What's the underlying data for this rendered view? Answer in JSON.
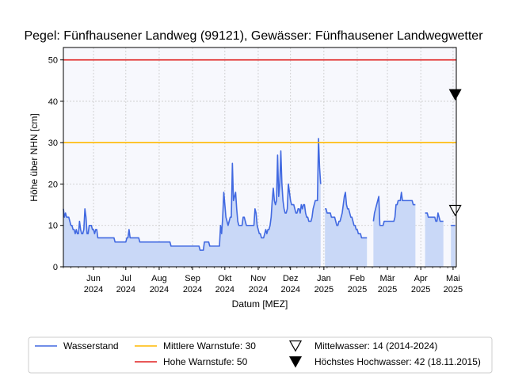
{
  "chart_data": {
    "type": "area",
    "title": "Pegel:  Fünfhausener Landweg (99121), Gewässer:  Fünfhausener Landwegwetter",
    "xlabel": "Datum [MEZ]",
    "ylabel": "Höhe über NHN [cm]",
    "ylim": [
      0,
      53
    ],
    "xlim": [
      "2024-05-04",
      "2025-05-04"
    ],
    "yticks": [
      0,
      10,
      20,
      30,
      40,
      50
    ],
    "xticks": [
      {
        "date": "2024-06-01",
        "label1": "Jun",
        "label2": "2024"
      },
      {
        "date": "2024-07-01",
        "label1": "Jul",
        "label2": "2024"
      },
      {
        "date": "2024-08-01",
        "label1": "Aug",
        "label2": "2024"
      },
      {
        "date": "2024-09-01",
        "label1": "Sep",
        "label2": "2024"
      },
      {
        "date": "2024-10-01",
        "label1": "Okt",
        "label2": "2024"
      },
      {
        "date": "2024-11-01",
        "label1": "Nov",
        "label2": "2024"
      },
      {
        "date": "2024-12-01",
        "label1": "Dez",
        "label2": "2024"
      },
      {
        "date": "2025-01-01",
        "label1": "Jan",
        "label2": "2025"
      },
      {
        "date": "2025-02-01",
        "label1": "Feb",
        "label2": "2025"
      },
      {
        "date": "2025-03-01",
        "label1": "Mär",
        "label2": "2025"
      },
      {
        "date": "2025-04-01",
        "label1": "Apr",
        "label2": "2025"
      },
      {
        "date": "2025-05-01",
        "label1": "Mai",
        "label2": "2025"
      }
    ],
    "grid": true,
    "legend_position": "bottom",
    "series": [
      {
        "name": "Wasserstand",
        "color": "#4169e1",
        "fill": "#c9d8f7",
        "segments": [
          [
            [
              "2024-05-04",
              14
            ],
            [
              "2024-05-05",
              12
            ],
            [
              "2024-05-06",
              13
            ],
            [
              "2024-05-07",
              12
            ],
            [
              "2024-05-09",
              12
            ],
            [
              "2024-05-10",
              11
            ],
            [
              "2024-05-11",
              10
            ],
            [
              "2024-05-12",
              10
            ],
            [
              "2024-05-13",
              9
            ],
            [
              "2024-05-14",
              9
            ],
            [
              "2024-05-15",
              8
            ],
            [
              "2024-05-16",
              9
            ],
            [
              "2024-05-17",
              8
            ],
            [
              "2024-05-18",
              8
            ],
            [
              "2024-05-19",
              11
            ],
            [
              "2024-05-20",
              9
            ],
            [
              "2024-05-21",
              8
            ],
            [
              "2024-05-22",
              8
            ],
            [
              "2024-05-23",
              9
            ],
            [
              "2024-05-24",
              14
            ],
            [
              "2024-05-25",
              12
            ],
            [
              "2024-05-26",
              8
            ],
            [
              "2024-05-27",
              8
            ],
            [
              "2024-05-28",
              10
            ],
            [
              "2024-05-29",
              10
            ],
            [
              "2024-05-30",
              10
            ],
            [
              "2024-05-31",
              9
            ],
            [
              "2024-06-01",
              9
            ],
            [
              "2024-06-02",
              8
            ],
            [
              "2024-06-03",
              9
            ],
            [
              "2024-06-04",
              9
            ],
            [
              "2024-06-05",
              7
            ],
            [
              "2024-06-20",
              7
            ],
            [
              "2024-06-21",
              6
            ],
            [
              "2024-07-01",
              6
            ],
            [
              "2024-07-02",
              7
            ],
            [
              "2024-07-03",
              7
            ],
            [
              "2024-07-04",
              9
            ],
            [
              "2024-07-05",
              7
            ],
            [
              "2024-07-13",
              7
            ],
            [
              "2024-07-14",
              6
            ],
            [
              "2024-08-11",
              6
            ],
            [
              "2024-08-12",
              5
            ],
            [
              "2024-09-07",
              5
            ],
            [
              "2024-09-08",
              4
            ],
            [
              "2024-09-11",
              4
            ],
            [
              "2024-09-12",
              6
            ],
            [
              "2024-09-16",
              6
            ],
            [
              "2024-09-17",
              5
            ],
            [
              "2024-09-26",
              5
            ],
            [
              "2024-09-27",
              10
            ],
            [
              "2024-09-28",
              8
            ],
            [
              "2024-09-29",
              12
            ],
            [
              "2024-09-30",
              18
            ],
            [
              "2024-10-01",
              15
            ],
            [
              "2024-10-02",
              12
            ],
            [
              "2024-10-03",
              11
            ],
            [
              "2024-10-04",
              10
            ],
            [
              "2024-10-05",
              11
            ],
            [
              "2024-10-06",
              12
            ],
            [
              "2024-10-07",
              12
            ],
            [
              "2024-10-08",
              25
            ],
            [
              "2024-10-09",
              16
            ],
            [
              "2024-10-10",
              17
            ],
            [
              "2024-10-11",
              18
            ],
            [
              "2024-10-12",
              14
            ],
            [
              "2024-10-13",
              11
            ],
            [
              "2024-10-14",
              10
            ],
            [
              "2024-10-17",
              10
            ],
            [
              "2024-10-18",
              12
            ],
            [
              "2024-10-19",
              12
            ],
            [
              "2024-10-20",
              11
            ],
            [
              "2024-10-21",
              10
            ],
            [
              "2024-10-28",
              10
            ],
            [
              "2024-10-29",
              14
            ],
            [
              "2024-10-30",
              13
            ],
            [
              "2024-10-31",
              10
            ],
            [
              "2024-11-01",
              9
            ],
            [
              "2024-11-02",
              8
            ],
            [
              "2024-11-03",
              8
            ],
            [
              "2024-11-04",
              7
            ],
            [
              "2024-11-06",
              7
            ],
            [
              "2024-11-07",
              8
            ],
            [
              "2024-11-08",
              9
            ],
            [
              "2024-11-09",
              8
            ],
            [
              "2024-11-10",
              9
            ],
            [
              "2024-11-11",
              9
            ],
            [
              "2024-11-12",
              10
            ],
            [
              "2024-11-13",
              12
            ],
            [
              "2024-11-14",
              16
            ],
            [
              "2024-11-15",
              19
            ],
            [
              "2024-11-16",
              16
            ],
            [
              "2024-11-17",
              15
            ],
            [
              "2024-11-18",
              16
            ],
            [
              "2024-11-19",
              27
            ],
            [
              "2024-11-20",
              17
            ],
            [
              "2024-11-21",
              20
            ],
            [
              "2024-11-22",
              28
            ],
            [
              "2024-11-23",
              20
            ],
            [
              "2024-11-24",
              16
            ],
            [
              "2024-11-25",
              14
            ],
            [
              "2024-11-26",
              13
            ],
            [
              "2024-11-27",
              13
            ],
            [
              "2024-11-28",
              14
            ],
            [
              "2024-11-29",
              20
            ],
            [
              "2024-11-30",
              18
            ],
            [
              "2024-12-01",
              16
            ],
            [
              "2024-12-02",
              15
            ],
            [
              "2024-12-03",
              15
            ],
            [
              "2024-12-04",
              15
            ],
            [
              "2024-12-05",
              14
            ],
            [
              "2024-12-06",
              13
            ],
            [
              "2024-12-07",
              13
            ],
            [
              "2024-12-08",
              14
            ],
            [
              "2024-12-09",
              14
            ],
            [
              "2024-12-10",
              13
            ],
            [
              "2024-12-11",
              15
            ],
            [
              "2024-12-12",
              14
            ],
            [
              "2024-12-13",
              15
            ],
            [
              "2024-12-14",
              15
            ],
            [
              "2024-12-15",
              13
            ],
            [
              "2024-12-16",
              12
            ],
            [
              "2024-12-17",
              12
            ],
            [
              "2024-12-18",
              11
            ],
            [
              "2024-12-19",
              11
            ],
            [
              "2024-12-20",
              11
            ],
            [
              "2024-12-21",
              12
            ],
            [
              "2024-12-22",
              14
            ],
            [
              "2024-12-23",
              15
            ],
            [
              "2024-12-24",
              16
            ],
            [
              "2024-12-25",
              16
            ],
            [
              "2024-12-26",
              16
            ],
            [
              "2024-12-27",
              31
            ],
            [
              "2024-12-28",
              24
            ],
            [
              "2024-12-29",
              20
            ]
          ],
          [
            [
              "2025-01-02",
              14
            ],
            [
              "2025-01-03",
              14
            ],
            [
              "2025-01-04",
              13
            ],
            [
              "2025-01-05",
              13
            ],
            [
              "2025-01-06",
              13
            ],
            [
              "2025-01-07",
              13
            ],
            [
              "2025-01-08",
              12
            ],
            [
              "2025-01-09",
              12
            ],
            [
              "2025-01-10",
              12
            ],
            [
              "2025-01-11",
              12
            ],
            [
              "2025-01-12",
              11
            ],
            [
              "2025-01-13",
              10
            ],
            [
              "2025-01-14",
              10
            ],
            [
              "2025-01-15",
              11
            ],
            [
              "2025-01-16",
              11
            ],
            [
              "2025-01-17",
              12
            ],
            [
              "2025-01-18",
              13
            ],
            [
              "2025-01-19",
              15
            ],
            [
              "2025-01-20",
              17
            ],
            [
              "2025-01-21",
              18
            ],
            [
              "2025-01-22",
              15
            ],
            [
              "2025-01-23",
              14
            ],
            [
              "2025-01-24",
              14
            ],
            [
              "2025-01-25",
              13
            ],
            [
              "2025-01-26",
              12
            ],
            [
              "2025-01-27",
              12
            ],
            [
              "2025-01-28",
              11
            ],
            [
              "2025-01-29",
              10
            ],
            [
              "2025-01-30",
              10
            ],
            [
              "2025-01-31",
              9
            ],
            [
              "2025-02-01",
              9
            ],
            [
              "2025-02-02",
              8
            ],
            [
              "2025-02-03",
              8
            ],
            [
              "2025-02-04",
              8
            ],
            [
              "2025-02-05",
              7
            ],
            [
              "2025-02-10",
              7
            ]
          ],
          [
            [
              "2025-02-16",
              11
            ],
            [
              "2025-02-17",
              13
            ],
            [
              "2025-02-18",
              14
            ],
            [
              "2025-02-19",
              15
            ],
            [
              "2025-02-20",
              16
            ],
            [
              "2025-02-21",
              17
            ],
            [
              "2025-02-22",
              10
            ],
            [
              "2025-02-25",
              10
            ],
            [
              "2025-02-26",
              11
            ],
            [
              "2025-03-07",
              11
            ],
            [
              "2025-03-08",
              12
            ],
            [
              "2025-03-09",
              15
            ],
            [
              "2025-03-10",
              15
            ],
            [
              "2025-03-11",
              16
            ],
            [
              "2025-03-12",
              16
            ],
            [
              "2025-03-13",
              16
            ],
            [
              "2025-03-14",
              18
            ],
            [
              "2025-03-15",
              16
            ],
            [
              "2025-03-16",
              16
            ],
            [
              "2025-03-24",
              16
            ],
            [
              "2025-03-25",
              15
            ],
            [
              "2025-03-27",
              15
            ]
          ],
          [
            [
              "2025-04-05",
              13
            ],
            [
              "2025-04-07",
              13
            ],
            [
              "2025-04-08",
              12
            ],
            [
              "2025-04-14",
              12
            ],
            [
              "2025-04-15",
              11
            ],
            [
              "2025-04-16",
              11
            ],
            [
              "2025-04-17",
              13
            ],
            [
              "2025-04-18",
              12
            ],
            [
              "2025-04-19",
              11
            ],
            [
              "2025-04-22",
              11
            ]
          ],
          [
            [
              "2025-04-29",
              10
            ],
            [
              "2025-05-03",
              10
            ]
          ]
        ]
      }
    ],
    "reference_lines": [
      {
        "name": "Mittlere Warnstufe: 30",
        "value": 30,
        "color": "#ffb800"
      },
      {
        "name": "Hohe Warnstufe: 50",
        "value": 50,
        "color": "#e02020"
      }
    ],
    "markers": [
      {
        "name": "Mittelwasser: 14 (2014-2024)",
        "value": 14,
        "date": "2025-05-03",
        "symbol": "triangle-down-open"
      },
      {
        "name": "Höchstes Hochwasser: 42 (18.11.2015)",
        "value": 42,
        "date": "2025-05-03",
        "symbol": "triangle-down-filled"
      }
    ]
  }
}
